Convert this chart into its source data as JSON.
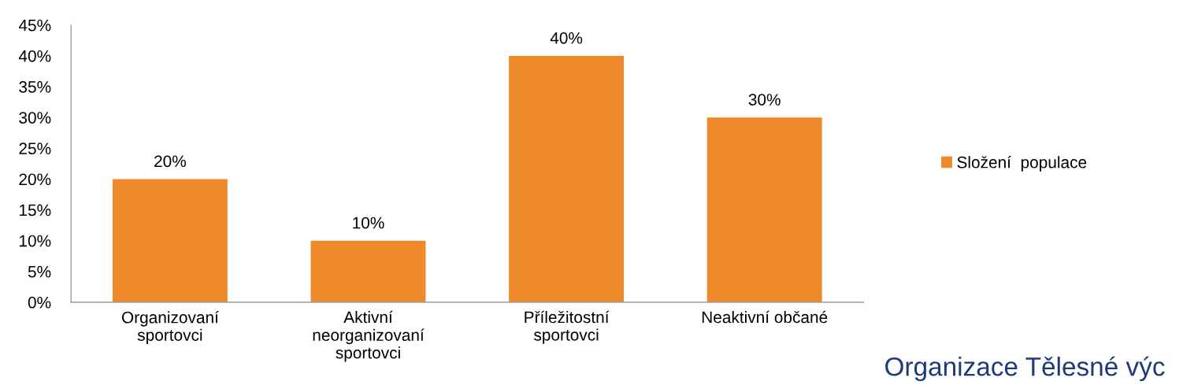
{
  "chart_data": {
    "type": "bar",
    "categories": [
      "Organizovaní\nsportovci",
      "Aktivní\nneorganizovaní\nsportovci",
      "Příležitostní\nsportovci",
      "Neaktivní občané"
    ],
    "series": [
      {
        "name": "Složení  populace",
        "color": "#ee8a2a",
        "values": [
          20,
          10,
          40,
          30
        ]
      }
    ],
    "value_labels": [
      "20%",
      "10%",
      "40%",
      "30%"
    ],
    "ylim": [
      0,
      45
    ],
    "yticks": [
      {
        "value": 0,
        "label": "0%"
      },
      {
        "value": 5,
        "label": "5%"
      },
      {
        "value": 10,
        "label": "10%"
      },
      {
        "value": 15,
        "label": "15%"
      },
      {
        "value": 20,
        "label": "20%"
      },
      {
        "value": 25,
        "label": "25%"
      },
      {
        "value": 30,
        "label": "30%"
      },
      {
        "value": 35,
        "label": "35%"
      },
      {
        "value": 40,
        "label": "40%"
      },
      {
        "value": 45,
        "label": "45%"
      }
    ],
    "grid": false,
    "legend": "right",
    "annotations": [
      "Organizace Tělesné výc"
    ]
  }
}
